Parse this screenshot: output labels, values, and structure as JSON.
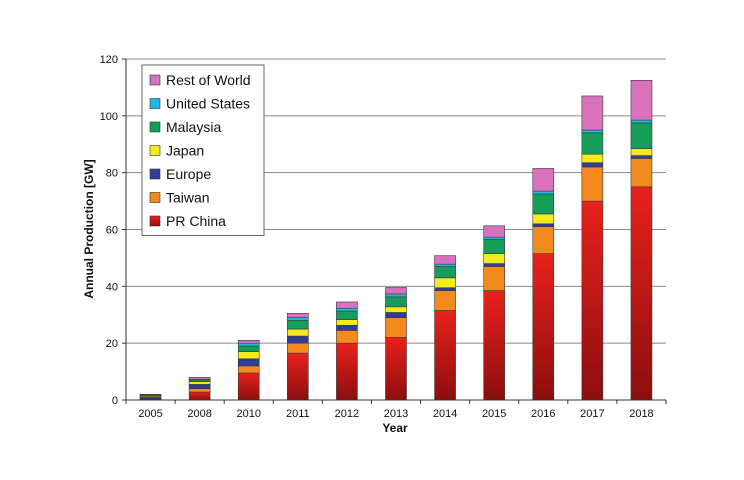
{
  "chart_data": {
    "type": "bar",
    "stacked": true,
    "title": "",
    "xlabel": "Year",
    "ylabel": "Annual Production [GW]",
    "ylim": [
      0,
      120
    ],
    "yticks": [
      0,
      20,
      40,
      60,
      80,
      100,
      120
    ],
    "grid": true,
    "legend_position": "top-left",
    "categories": [
      "2005",
      "2008",
      "2010",
      "2011",
      "2012",
      "2013",
      "2014",
      "2015",
      "2016",
      "2017",
      "2018"
    ],
    "series": [
      {
        "name": "PR China",
        "color": "#e31b1b",
        "values": [
          0.2,
          2.8,
          9.5,
          16.5,
          20.0,
          22.0,
          31.5,
          38.5,
          51.5,
          70.0,
          75.0
        ]
      },
      {
        "name": "Taiwan",
        "color": "#f28a1e",
        "values": [
          0.2,
          1.2,
          2.5,
          3.5,
          4.5,
          7.0,
          7.0,
          8.5,
          9.5,
          12.0,
          10.0
        ]
      },
      {
        "name": "Europe",
        "color": "#2f3e9e",
        "values": [
          0.8,
          1.5,
          2.5,
          2.5,
          1.8,
          1.8,
          1.0,
          1.0,
          1.0,
          1.5,
          1.0
        ]
      },
      {
        "name": "Japan",
        "color": "#f5ea1c",
        "values": [
          0.4,
          1.0,
          2.5,
          2.5,
          2.0,
          2.0,
          3.5,
          3.5,
          3.5,
          3.0,
          2.5
        ]
      },
      {
        "name": "Malaysia",
        "color": "#159e57",
        "values": [
          0.1,
          0.5,
          2.0,
          3.0,
          3.0,
          3.5,
          4.0,
          5.0,
          7.0,
          7.5,
          9.0
        ]
      },
      {
        "name": "United States",
        "color": "#20b8e6",
        "values": [
          0.1,
          0.3,
          1.0,
          1.0,
          1.0,
          1.0,
          0.8,
          0.8,
          1.0,
          1.0,
          1.0
        ]
      },
      {
        "name": "Rest of World",
        "color": "#d972bd",
        "values": [
          0.2,
          0.7,
          1.0,
          1.5,
          2.2,
          2.3,
          3.0,
          4.0,
          8.0,
          12.0,
          14.0
        ]
      }
    ]
  }
}
